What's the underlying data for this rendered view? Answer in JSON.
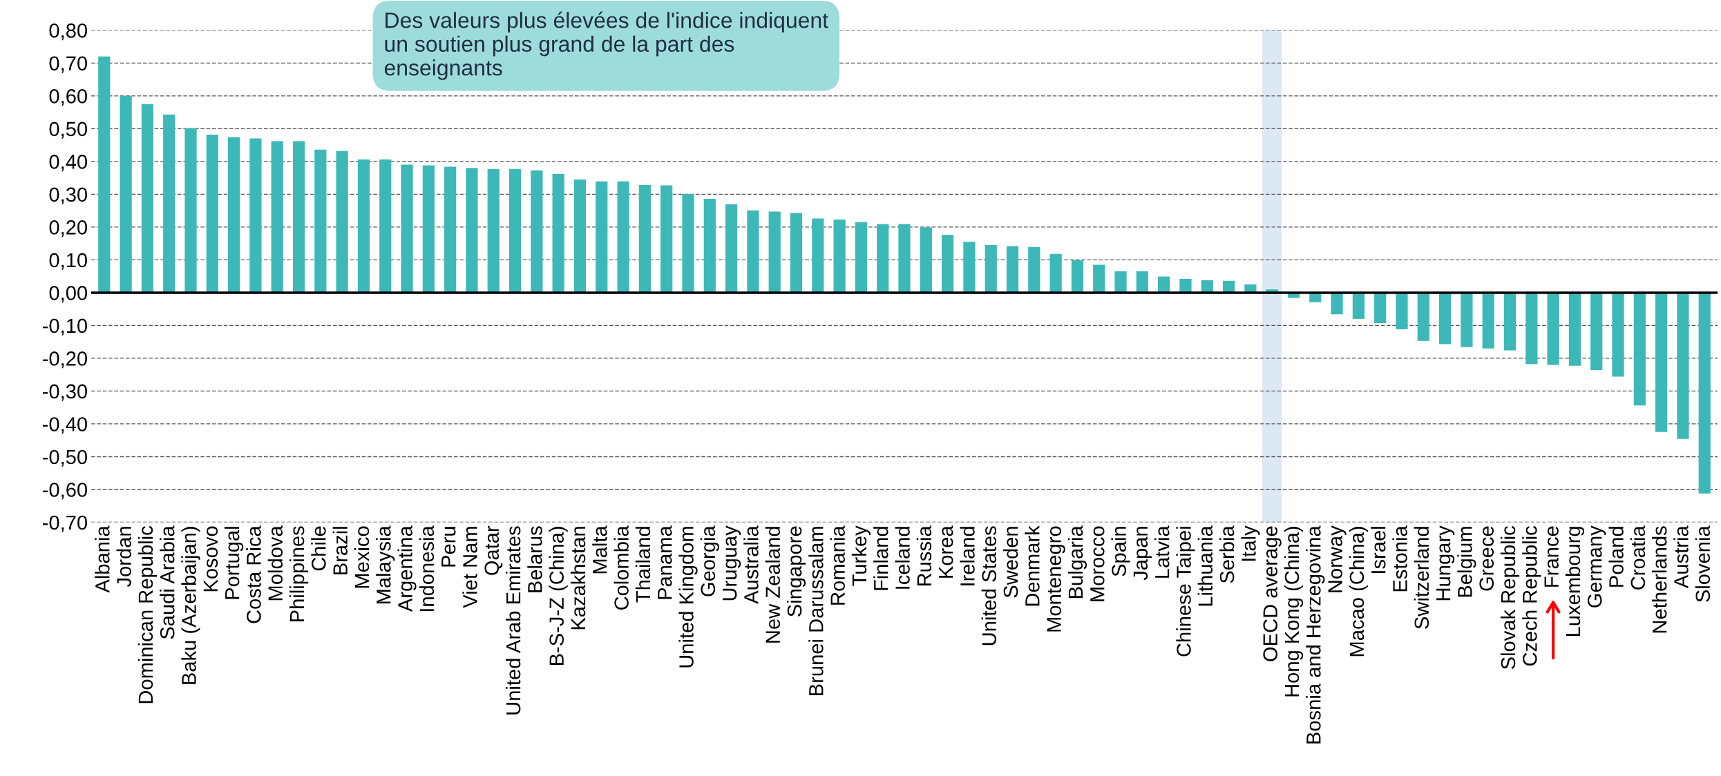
{
  "chart_data": {
    "type": "bar",
    "categories": [
      "Albania",
      "Jordan",
      "Dominican Republic",
      "Saudi Arabia",
      "Baku (Azerbaijan)",
      "Kosovo",
      "Portugal",
      "Costa Rica",
      "Moldova",
      "Philippines",
      "Chile",
      "Brazil",
      "Mexico",
      "Malaysia",
      "Argentina",
      "Indonesia",
      "Peru",
      "Viet Nam",
      "Qatar",
      "United Arab Emirates",
      "Belarus",
      "B-S-J-Z (China)",
      "Kazakhstan",
      "Malta",
      "Colombia",
      "Thailand",
      "Panama",
      "United Kingdom",
      "Georgia",
      "Uruguay",
      "Australia",
      "New Zealand",
      "Singapore",
      "Brunei Darussalam",
      "Romania",
      "Turkey",
      "Finland",
      "Iceland",
      "Russia",
      "Korea",
      "Ireland",
      "United States",
      "Sweden",
      "Denmark",
      "Montenegro",
      "Bulgaria",
      "Morocco",
      "Spain",
      "Japan",
      "Latvia",
      "Chinese Taipei",
      "Lithuania",
      "Serbia",
      "Italy",
      "OECD average",
      "Hong Kong (China)",
      "Bosnia and Herzegovina",
      "Norway",
      "Macao (China)",
      "Israel",
      "Estonia",
      "Switzerland",
      "Hungary",
      "Belgium",
      "Greece",
      "Slovak Republic",
      "Czech Republic",
      "France",
      "Luxembourg",
      "Germany",
      "Poland",
      "Croatia",
      "Netherlands",
      "Austria",
      "Slovenia"
    ],
    "values": [
      0.72,
      0.6,
      0.575,
      0.543,
      0.502,
      0.482,
      0.474,
      0.47,
      0.462,
      0.462,
      0.436,
      0.432,
      0.406,
      0.406,
      0.39,
      0.388,
      0.384,
      0.38,
      0.377,
      0.377,
      0.373,
      0.362,
      0.345,
      0.339,
      0.339,
      0.328,
      0.327,
      0.301,
      0.286,
      0.269,
      0.251,
      0.247,
      0.243,
      0.226,
      0.223,
      0.215,
      0.209,
      0.209,
      0.199,
      0.176,
      0.155,
      0.145,
      0.142,
      0.139,
      0.118,
      0.099,
      0.085,
      0.065,
      0.065,
      0.049,
      0.042,
      0.038,
      0.036,
      0.025,
      0.01,
      -0.016,
      -0.029,
      -0.066,
      -0.08,
      -0.093,
      -0.112,
      -0.147,
      -0.157,
      -0.166,
      -0.17,
      -0.176,
      -0.218,
      -0.22,
      -0.223,
      -0.236,
      -0.256,
      -0.344,
      -0.425,
      -0.446,
      -0.612
    ],
    "color": "#3db8b8",
    "ylim": [
      -0.7,
      0.8
    ],
    "yticks": [
      {
        "value": -0.7,
        "label": "-0,70"
      },
      {
        "value": -0.6,
        "label": "-0,60"
      },
      {
        "value": -0.5,
        "label": "-0,50"
      },
      {
        "value": -0.4,
        "label": "-0,40"
      },
      {
        "value": -0.3,
        "label": "-0,30"
      },
      {
        "value": -0.2,
        "label": "-0,20"
      },
      {
        "value": -0.1,
        "label": "-0,10"
      },
      {
        "value": 0,
        "label": "0,00"
      },
      {
        "value": 0.1,
        "label": "0,10"
      },
      {
        "value": 0.2,
        "label": "0,20"
      },
      {
        "value": 0.3,
        "label": "0,30"
      },
      {
        "value": 0.4,
        "label": "0,40"
      },
      {
        "value": 0.5,
        "label": "0,50"
      },
      {
        "value": 0.6,
        "label": "0,60"
      },
      {
        "value": 0.7,
        "label": "0,70"
      },
      {
        "value": 0.8,
        "label": "0,80"
      }
    ],
    "grid": "y",
    "bands": [
      {
        "axis": "x",
        "from": "OECD average",
        "to": "OECD average",
        "color": "#dce8f5"
      }
    ],
    "annotations": [
      "Des valeurs plus élevées de l'indice indiquent un soutien plus grand de la part des enseignants"
    ]
  }
}
